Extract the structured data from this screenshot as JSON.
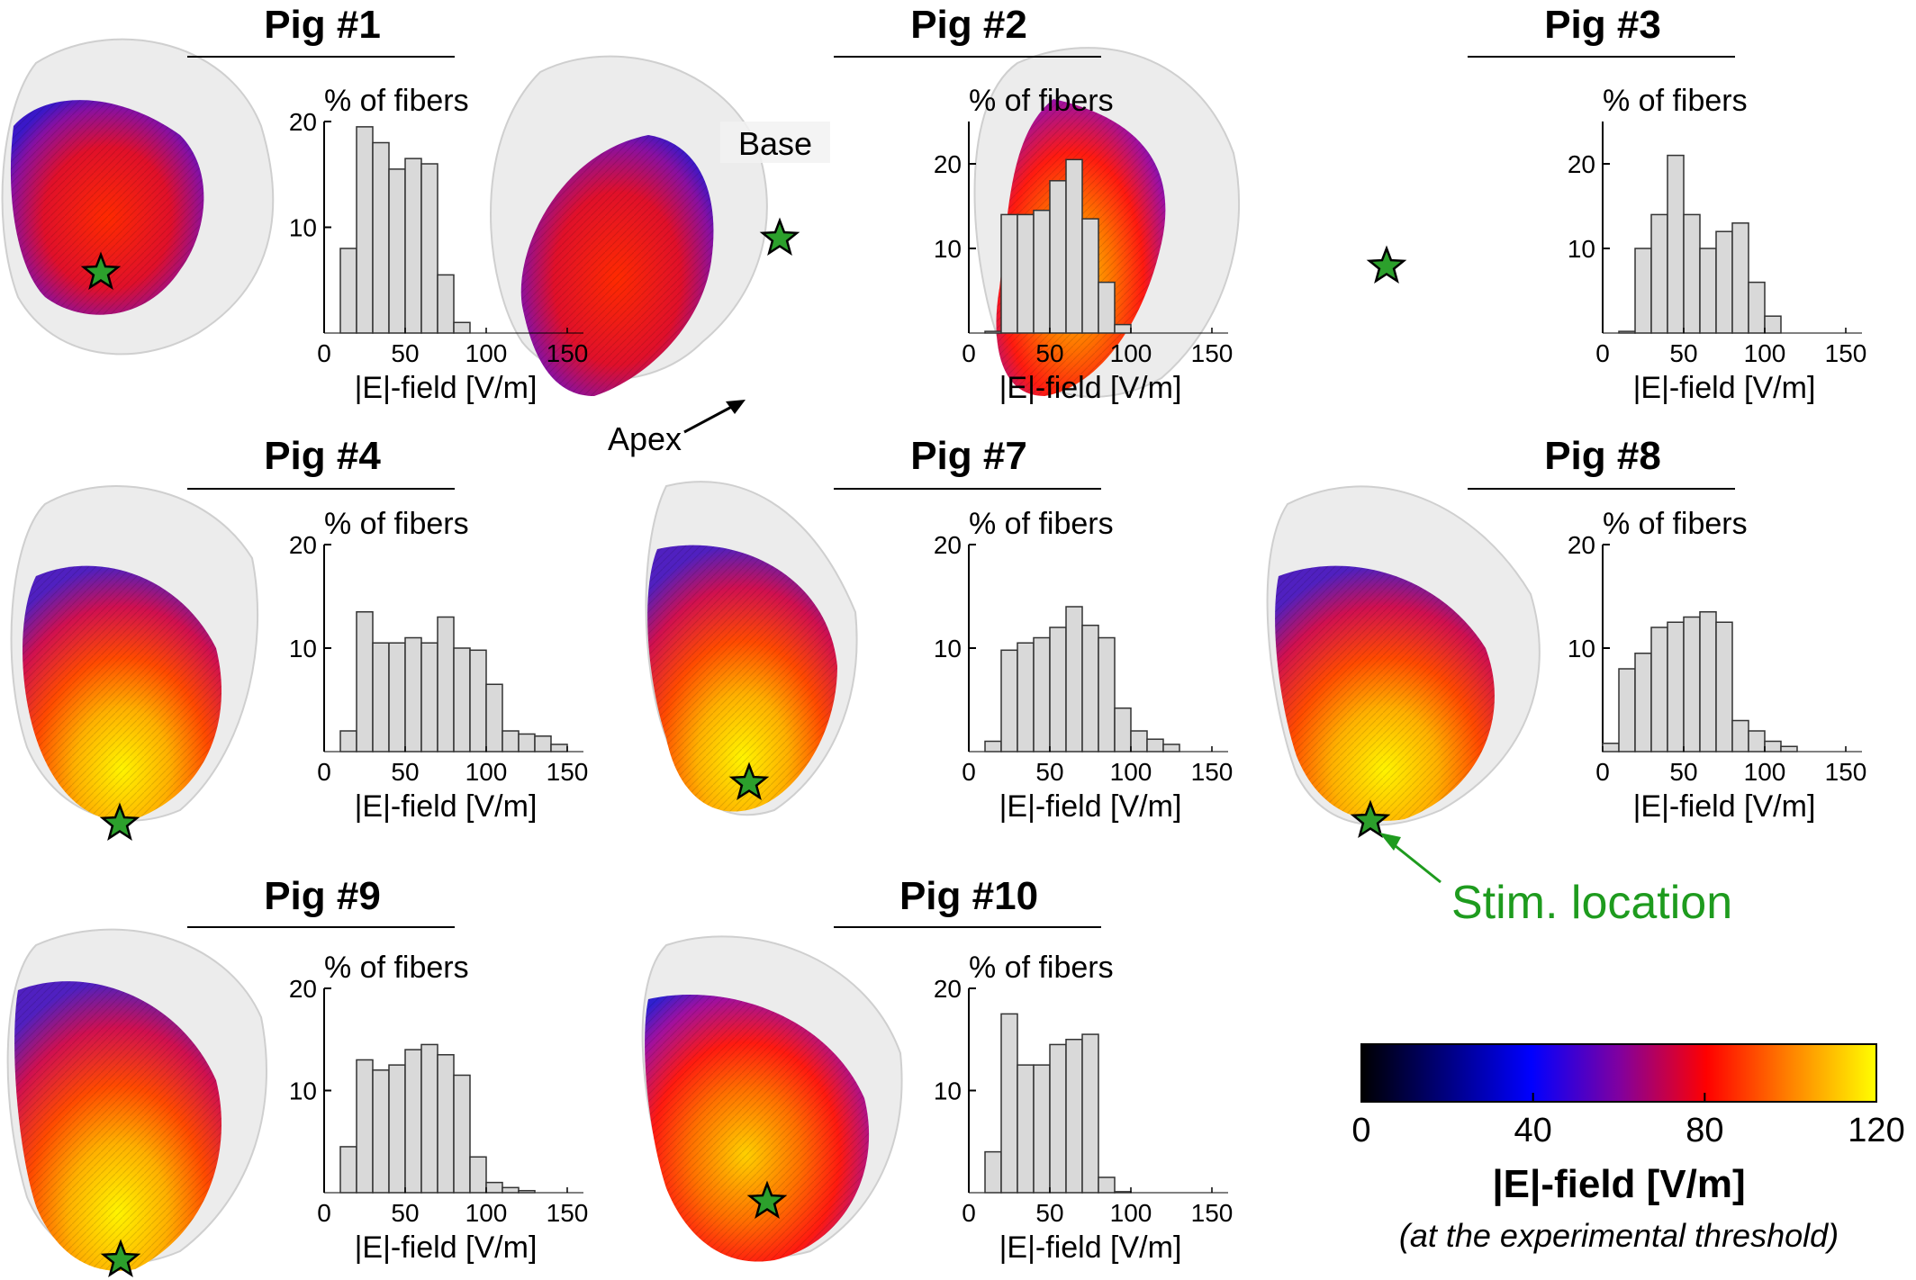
{
  "annotations": {
    "base": "Base",
    "apex": "Apex",
    "stim": "Stim. location"
  },
  "colorbar": {
    "ticks": [
      "0",
      "40",
      "80",
      "120"
    ],
    "tick_values": [
      0,
      40,
      80,
      120
    ],
    "range": [
      0,
      120
    ],
    "title": "|E|-field [V/m]",
    "subtitle": "(at the experimental threshold)",
    "colormap_stops": [
      "#000000",
      "#0000ff",
      "#8000a0",
      "#ff0000",
      "#ff8000",
      "#ffff00"
    ]
  },
  "colors": {
    "bar_fill": "#d9d9d9",
    "bar_edge": "#333333",
    "stim_star": "#2ca02c",
    "stim_text": "#1e9b1e",
    "heart_shell": "#e6e6e6"
  },
  "chart_data": [
    {
      "type": "bar",
      "title": "Pig #1",
      "ylabel": "% of fibers",
      "xlabel": "|E|-field [V/m]",
      "bin_width": 10,
      "x_start": 10,
      "values": [
        8,
        19.5,
        18,
        15.5,
        16.5,
        16,
        5.5,
        1,
        0,
        0,
        0,
        0,
        0,
        0
      ],
      "xticks": [
        0,
        50,
        100,
        150
      ],
      "yticks": [
        10,
        20
      ],
      "xlim": [
        0,
        160
      ],
      "ylim": [
        0,
        20
      ]
    },
    {
      "type": "bar",
      "title": "Pig #2",
      "ylabel": "% of fibers",
      "xlabel": "|E|-field [V/m]",
      "bin_width": 10,
      "x_start": 10,
      "values": [
        0.2,
        14,
        14,
        14.5,
        18,
        20.5,
        13.5,
        6,
        1,
        0,
        0,
        0,
        0,
        0
      ],
      "xticks": [
        0,
        50,
        100,
        150
      ],
      "yticks": [
        10,
        20
      ],
      "xlim": [
        0,
        160
      ],
      "ylim": [
        0,
        25
      ]
    },
    {
      "type": "bar",
      "title": "Pig #3",
      "ylabel": "% of fibers",
      "xlabel": "|E|-field [V/m]",
      "bin_width": 10,
      "x_start": 10,
      "values": [
        0.2,
        10,
        14,
        21,
        14,
        10,
        12,
        13,
        6,
        2,
        0,
        0,
        0,
        0
      ],
      "xticks": [
        0,
        50,
        100,
        150
      ],
      "yticks": [
        10,
        20
      ],
      "xlim": [
        0,
        160
      ],
      "ylim": [
        0,
        25
      ]
    },
    {
      "type": "bar",
      "title": "Pig #4",
      "ylabel": "% of fibers",
      "xlabel": "|E|-field [V/m]",
      "bin_width": 10,
      "x_start": 10,
      "values": [
        2,
        13.5,
        10.5,
        10.5,
        11,
        10.5,
        13,
        10,
        9.8,
        6.5,
        2,
        1.7,
        1.5,
        0.7
      ],
      "xticks": [
        0,
        50,
        100,
        150
      ],
      "yticks": [
        10,
        20
      ],
      "xlim": [
        0,
        160
      ],
      "ylim": [
        0,
        20
      ]
    },
    {
      "type": "bar",
      "title": "Pig #7",
      "ylabel": "% of fibers",
      "xlabel": "|E|-field [V/m]",
      "bin_width": 10,
      "x_start": 10,
      "values": [
        1,
        9.8,
        10.5,
        11,
        12,
        14,
        12.2,
        11,
        4.2,
        2,
        1.2,
        0.7,
        0,
        0
      ],
      "xticks": [
        0,
        50,
        100,
        150
      ],
      "yticks": [
        10,
        20
      ],
      "xlim": [
        0,
        160
      ],
      "ylim": [
        0,
        20
      ]
    },
    {
      "type": "bar",
      "title": "Pig #8",
      "ylabel": "% of fibers",
      "xlabel": "|E|-field [V/m]",
      "bin_width": 10,
      "x_start": 0,
      "values": [
        0.8,
        8,
        9.5,
        12,
        12.5,
        13,
        13.5,
        12.5,
        3,
        2,
        1,
        0.5,
        0,
        0
      ],
      "xticks": [
        0,
        50,
        100,
        150
      ],
      "yticks": [
        10,
        20
      ],
      "xlim": [
        0,
        160
      ],
      "ylim": [
        0,
        20
      ]
    },
    {
      "type": "bar",
      "title": "Pig #9",
      "ylabel": "% of fibers",
      "xlabel": "|E|-field [V/m]",
      "bin_width": 10,
      "x_start": 10,
      "values": [
        4.5,
        13,
        12,
        12.5,
        14,
        14.5,
        13.5,
        11.5,
        3.5,
        1,
        0.5,
        0.2,
        0,
        0
      ],
      "xticks": [
        0,
        50,
        100,
        150
      ],
      "yticks": [
        10,
        20
      ],
      "xlim": [
        0,
        160
      ],
      "ylim": [
        0,
        20
      ]
    },
    {
      "type": "bar",
      "title": "Pig #10",
      "ylabel": "% of fibers",
      "xlabel": "|E|-field [V/m]",
      "bin_width": 10,
      "x_start": 10,
      "values": [
        4,
        17.5,
        12.5,
        12.5,
        14.5,
        15,
        15.5,
        1.5,
        0.1,
        0,
        0,
        0,
        0,
        0
      ],
      "xticks": [
        0,
        50,
        100,
        150
      ],
      "yticks": [
        10,
        20
      ],
      "xlim": [
        0,
        160
      ],
      "ylim": [
        0,
        20
      ]
    }
  ]
}
